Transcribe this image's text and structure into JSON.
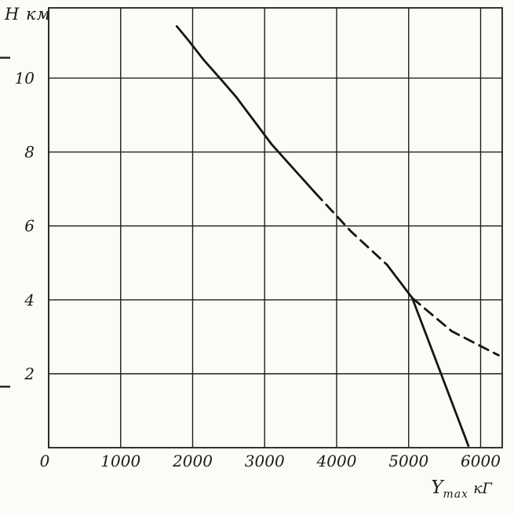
{
  "chart_data": {
    "type": "line",
    "title": "",
    "ylabel": "Н км",
    "xlabel_main": "Y",
    "xlabel_sub": "max",
    "xlabel_unit": "кГ",
    "x_ticks": [
      0,
      1000,
      2000,
      3000,
      4000,
      5000,
      6000
    ],
    "y_ticks": [
      2,
      4,
      6,
      8,
      10
    ],
    "x_range": [
      0,
      6300
    ],
    "y_range": [
      0,
      11.9
    ],
    "grid": true,
    "legend": "none",
    "line_color": "#161616",
    "grid_color": "#1e1e1e",
    "series": [
      {
        "name": "ceiling-curve-upper-solid",
        "style": "solid",
        "points": [
          [
            1780,
            11.4
          ],
          [
            1950,
            11.0
          ],
          [
            2150,
            10.5
          ],
          [
            2400,
            9.95
          ],
          [
            2600,
            9.5
          ],
          [
            2850,
            8.85
          ],
          [
            3100,
            8.2
          ],
          [
            3400,
            7.55
          ],
          [
            3700,
            6.9
          ]
        ]
      },
      {
        "name": "ceiling-curve-mid-dashed",
        "style": "dashed",
        "points": [
          [
            3700,
            6.9
          ],
          [
            4200,
            5.85
          ],
          [
            4700,
            4.95
          ]
        ]
      },
      {
        "name": "ceiling-curve-lower-solid",
        "style": "solid",
        "points": [
          [
            4700,
            4.95
          ],
          [
            5050,
            4.05
          ],
          [
            5830,
            0.05
          ]
        ]
      },
      {
        "name": "ceiling-extrapolation-dashed",
        "style": "dashed",
        "points": [
          [
            5050,
            4.05
          ],
          [
            5600,
            3.15
          ],
          [
            6250,
            2.5
          ]
        ]
      }
    ],
    "edge_ticks_y": [
      10.55,
      1.65
    ]
  }
}
